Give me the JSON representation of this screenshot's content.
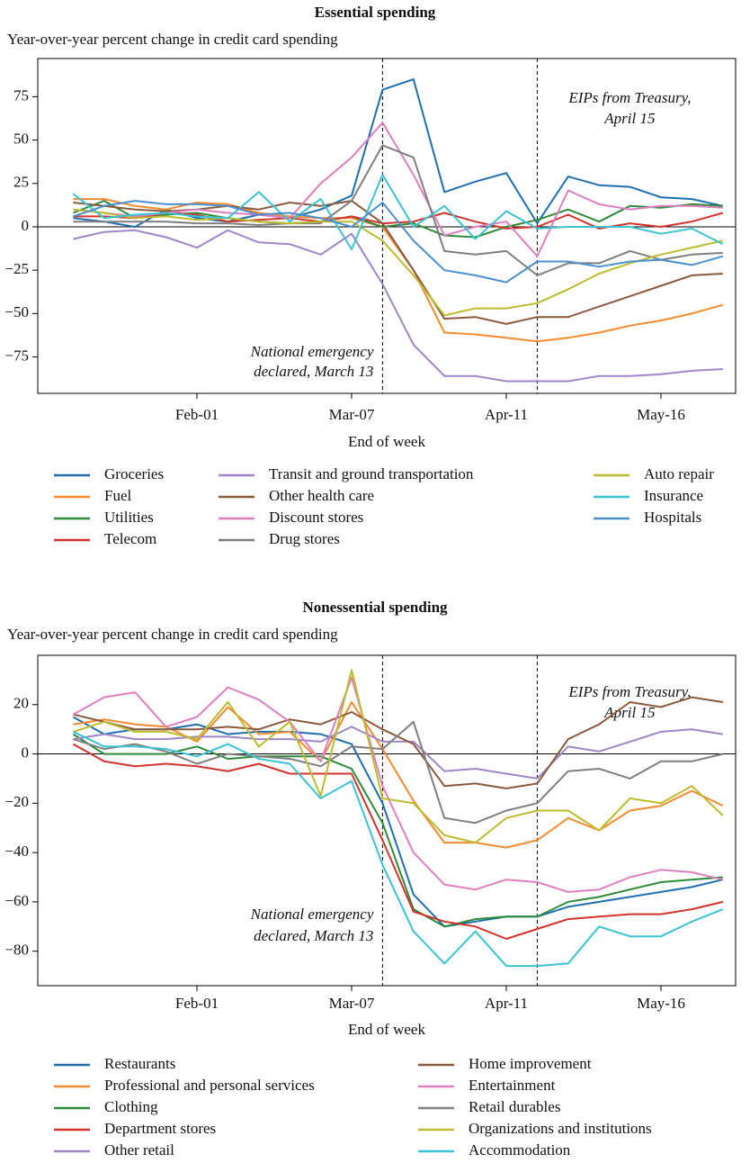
{
  "chart_data": [
    {
      "type": "line",
      "title": "Essential spending",
      "subtitle": "Year-over-year percent change in credit card spending",
      "xlabel": "End of week",
      "categories": [
        null,
        null,
        null,
        null,
        "Feb-01",
        null,
        null,
        null,
        null,
        "Mar-07",
        null,
        null,
        null,
        null,
        "Apr-11",
        null,
        null,
        null,
        null,
        "May-16",
        null,
        null
      ],
      "ylim": [
        -96,
        97
      ],
      "yticks": [
        {
          "value": -75,
          "label": "−75"
        },
        {
          "value": -50,
          "label": "−50"
        },
        {
          "value": -25,
          "label": "−25"
        },
        0,
        25,
        50,
        75
      ],
      "hline": 0,
      "vlines": [
        10,
        15
      ],
      "legend_columns": 3,
      "annotations": [
        {
          "text": [
            "National emergency",
            "declared, March 13"
          ]
        },
        {
          "text": [
            "EIPs from Treasury,",
            "April 15"
          ]
        }
      ],
      "series": [
        {
          "name": "Groceries",
          "color": "#1f6fb0",
          "values": [
            5,
            3,
            0,
            10,
            5,
            3,
            7,
            5,
            10,
            18,
            79,
            85,
            20,
            26,
            31,
            2,
            29,
            24,
            23,
            17,
            16,
            12
          ]
        },
        {
          "name": "Fuel",
          "color": "#f58a2e",
          "values": [
            16,
            16,
            12,
            10,
            14,
            13,
            8,
            6,
            5,
            5,
            0,
            -25,
            -61,
            -62,
            -64,
            -66,
            -64,
            -61,
            -57,
            -54,
            -50,
            -45
          ]
        },
        {
          "name": "Utilities",
          "color": "#2e8b3a",
          "values": [
            8,
            15,
            5,
            7,
            8,
            5,
            3,
            2,
            3,
            6,
            0,
            2,
            -5,
            -6,
            0,
            4,
            10,
            3,
            12,
            11,
            13,
            12
          ]
        },
        {
          "name": "Telecom",
          "color": "#d1342c",
          "values": [
            6,
            6,
            5,
            8,
            7,
            3,
            4,
            5,
            3,
            6,
            2,
            3,
            8,
            3,
            -1,
            0,
            7,
            -1,
            2,
            0,
            3,
            8
          ]
        },
        {
          "name": "Transit and ground transportation",
          "color": "#9e86c8",
          "values": [
            -7,
            -3,
            -2,
            -6,
            -12,
            -2,
            -9,
            -10,
            -16,
            -4,
            -33,
            -68,
            -86,
            -86,
            -89,
            -89,
            -89,
            -86,
            -86,
            -85,
            -83,
            -82
          ]
        },
        {
          "name": "Other health care",
          "color": "#8b5a3c",
          "values": [
            14,
            12,
            10,
            9,
            10,
            12,
            10,
            14,
            12,
            15,
            2,
            -25,
            -53,
            -52,
            -56,
            -52,
            -52,
            -46,
            -40,
            -34,
            -28,
            -27
          ]
        },
        {
          "name": "Discount stores",
          "color": "#de7fc0",
          "values": [
            10,
            8,
            6,
            8,
            10,
            8,
            7,
            5,
            25,
            40,
            60,
            30,
            -5,
            0,
            3,
            -17,
            21,
            13,
            10,
            12,
            12,
            11
          ]
        },
        {
          "name": "Drug stores",
          "color": "#7f7f7f",
          "values": [
            3,
            3,
            3,
            3,
            2,
            2,
            1,
            2,
            2,
            15,
            47,
            40,
            -14,
            -16,
            -14,
            -28,
            -21,
            -21,
            -14,
            -19,
            -16,
            -15
          ]
        },
        {
          "name": "Auto repair",
          "color": "#bcbc2e",
          "values": [
            10,
            8,
            5,
            6,
            4,
            5,
            3,
            2,
            3,
            3,
            -8,
            -28,
            -51,
            -47,
            -47,
            -44,
            -36,
            -27,
            -21,
            -16,
            -12,
            -8
          ]
        },
        {
          "name": "Insurance",
          "color": "#3cc3d3",
          "values": [
            19,
            5,
            7,
            8,
            6,
            5,
            20,
            3,
            16,
            -13,
            30,
            0,
            12,
            -7,
            9,
            -1,
            0,
            0,
            0,
            -4,
            -1,
            -10
          ]
        },
        {
          "name": "Hospitals",
          "color": "#4a90d0",
          "values": [
            6,
            12,
            15,
            13,
            13,
            12,
            7,
            8,
            5,
            0,
            14,
            -8,
            -25,
            -28,
            -32,
            -20,
            -20,
            -23,
            -20,
            -19,
            -22,
            -17
          ]
        }
      ]
    },
    {
      "type": "line",
      "title": "Nonessential spending",
      "subtitle": "Year-over-year percent change in credit card spending",
      "xlabel": "End of week",
      "categories": [
        null,
        null,
        null,
        null,
        "Feb-01",
        null,
        null,
        null,
        null,
        "Mar-07",
        null,
        null,
        null,
        null,
        "Apr-11",
        null,
        null,
        null,
        null,
        "May-16",
        null,
        null
      ],
      "ylim": [
        -94,
        40
      ],
      "yticks": [
        {
          "value": -80,
          "label": "−80"
        },
        {
          "value": -60,
          "label": "−60"
        },
        {
          "value": -40,
          "label": "−40"
        },
        {
          "value": -20,
          "label": "−20"
        },
        0,
        20
      ],
      "hline": 0,
      "vlines": [
        10,
        15
      ],
      "legend_columns": 2,
      "annotations": [
        {
          "text": [
            "National emergency",
            "declared, March 13"
          ]
        },
        {
          "text": [
            "EIPs from Treasury,",
            "April 15"
          ]
        }
      ],
      "series": [
        {
          "name": "Restaurants",
          "color": "#1f6fb0",
          "values": [
            15,
            8,
            10,
            10,
            12,
            8,
            9,
            9,
            8,
            4,
            -20,
            -57,
            -70,
            -68,
            -66,
            -66,
            -62,
            -60,
            -58,
            -56,
            -54,
            -51
          ]
        },
        {
          "name": "Professional and personal services",
          "color": "#f58a2e",
          "values": [
            12,
            14,
            12,
            11,
            5,
            19,
            8,
            9,
            -3,
            21,
            2,
            -19,
            -36,
            -36,
            -38,
            -35,
            -26,
            -31,
            -23,
            -21,
            -15,
            -21
          ]
        },
        {
          "name": "Clothing",
          "color": "#2e8b3a",
          "values": [
            8,
            0,
            0,
            0,
            3,
            -2,
            -1,
            -1,
            -1,
            -6,
            -28,
            -63,
            -70,
            -67,
            -66,
            -66,
            -60,
            -58,
            -55,
            -52,
            -51,
            -50
          ]
        },
        {
          "name": "Department stores",
          "color": "#d1342c",
          "values": [
            4,
            -3,
            -5,
            -4,
            -5,
            -7,
            -4,
            -8,
            -8,
            -8,
            -35,
            -64,
            -68,
            -70,
            -75,
            -71,
            -67,
            -66,
            -65,
            -65,
            -63,
            -60
          ]
        },
        {
          "name": "Other retail",
          "color": "#9e86c8",
          "values": [
            6,
            8,
            6,
            6,
            7,
            7,
            6,
            6,
            5,
            11,
            5,
            5,
            -7,
            -6,
            -8,
            -10,
            3,
            1,
            5,
            9,
            10,
            8
          ]
        },
        {
          "name": "Home improvement",
          "color": "#8b5a3c",
          "values": [
            16,
            13,
            10,
            10,
            10,
            11,
            10,
            14,
            12,
            17,
            10,
            4,
            -13,
            -12,
            -14,
            -12,
            6,
            12,
            21,
            19,
            23,
            21
          ]
        },
        {
          "name": "Entertainment",
          "color": "#de7fc0",
          "values": [
            16,
            23,
            25,
            11,
            15,
            27,
            22,
            13,
            -3,
            31,
            -13,
            -40,
            -53,
            -55,
            -51,
            -52,
            -56,
            -55,
            -50,
            -47,
            -48,
            -51
          ]
        },
        {
          "name": "Retail durables",
          "color": "#7f7f7f",
          "values": [
            6,
            2,
            4,
            1,
            -4,
            0,
            -1,
            -2,
            -5,
            3,
            2,
            13,
            -26,
            -28,
            -23,
            -20,
            -7,
            -6,
            -10,
            -3,
            -3,
            0
          ]
        },
        {
          "name": "Organizations and institutions",
          "color": "#bcbc2e",
          "values": [
            9,
            13,
            9,
            9,
            6,
            21,
            3,
            13,
            -17,
            34,
            -18,
            -20,
            -33,
            -36,
            -26,
            -23,
            -23,
            -31,
            -18,
            -20,
            -13,
            -25
          ]
        },
        {
          "name": "Accommodation",
          "color": "#3cc3d3",
          "values": [
            9,
            3,
            3,
            2,
            -1,
            4,
            -2,
            -4,
            -18,
            -11,
            -45,
            -72,
            -85,
            -72,
            -86,
            -86,
            -85,
            -70,
            -74,
            -74,
            -68,
            -63
          ]
        }
      ]
    }
  ]
}
